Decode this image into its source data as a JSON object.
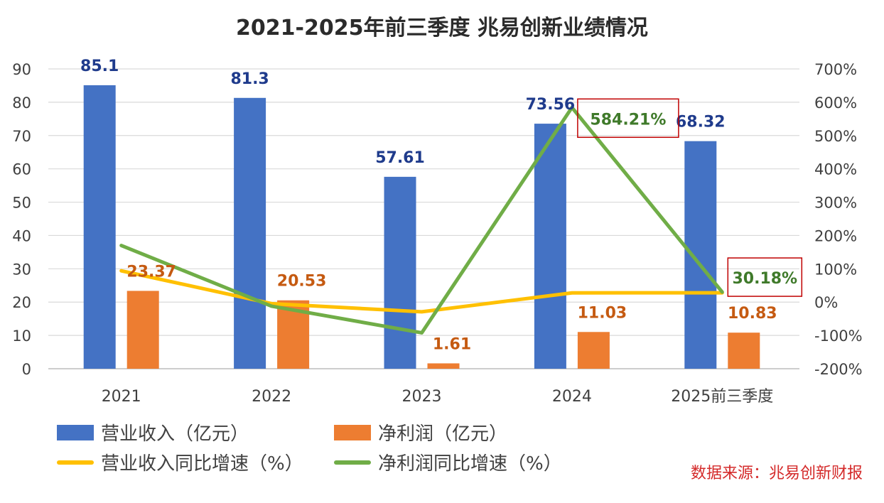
{
  "title": "2021-2025年前三季度 兆易创新业绩情况",
  "source": "数据来源：兆易创新财报",
  "colors": {
    "revenue": "#4472c4",
    "net_profit": "#ed7d31",
    "revenue_yoy": "#ffc000",
    "net_profit_yoy": "#70ad47",
    "revenue_label": "#1f3b8c",
    "profit_label": "#c55a11",
    "highlight_box": "#c00000",
    "highlight_text": "#3f7a2a",
    "grid": "#d9d9d9",
    "axis_text": "#404040"
  },
  "chart_data": {
    "type": "bar",
    "title": "2021-2025年前三季度 兆易创新业绩情况",
    "categories": [
      "2021",
      "2022",
      "2023",
      "2024",
      "2025前三季度"
    ],
    "series": [
      {
        "name": "营业收入（亿元）",
        "kind": "bar",
        "axis": "left",
        "values": [
          85.1,
          81.3,
          57.61,
          73.56,
          68.32
        ],
        "labels": [
          "85.1",
          "81.3",
          "57.61",
          "73.56",
          "68.32"
        ]
      },
      {
        "name": "净利润（亿元）",
        "kind": "bar",
        "axis": "left",
        "values": [
          23.37,
          20.53,
          1.61,
          11.03,
          10.83
        ],
        "labels": [
          "23.37",
          "20.53",
          "1.61",
          "11.03",
          "10.83"
        ]
      },
      {
        "name": "营业收入同比增速（%）",
        "kind": "line",
        "axis": "right",
        "values": [
          94,
          -4.5,
          -29.1,
          27.7,
          28
        ]
      },
      {
        "name": "净利润同比增速（%）",
        "kind": "line",
        "axis": "right",
        "values": [
          170,
          -12.2,
          -92.2,
          584.21,
          30.18
        ]
      }
    ],
    "annotations": [
      {
        "series": "净利润同比增速（%）",
        "category": "2024",
        "text": "584.21%"
      },
      {
        "series": "净利润同比增速（%）",
        "category": "2025前三季度",
        "text": "30.18%"
      }
    ],
    "left_axis": {
      "ylim": [
        0,
        90
      ],
      "ticks": [
        "0",
        "10",
        "20",
        "30",
        "40",
        "50",
        "60",
        "70",
        "80",
        "90"
      ]
    },
    "right_axis": {
      "ylim": [
        -200,
        700
      ],
      "ticks": [
        "-200%",
        "-100%",
        "0%",
        "100%",
        "200%",
        "300%",
        "400%",
        "500%",
        "600%",
        "700%"
      ]
    },
    "grid": true,
    "legend_position": "bottom-left"
  },
  "legend": [
    {
      "label": "营业收入（亿元）",
      "type": "bar",
      "color_key": "revenue"
    },
    {
      "label": "净利润（亿元）",
      "type": "bar",
      "color_key": "net_profit"
    },
    {
      "label": "营业收入同比增速（%）",
      "type": "line",
      "color_key": "revenue_yoy"
    },
    {
      "label": "净利润同比增速（%）",
      "type": "line",
      "color_key": "net_profit_yoy"
    }
  ]
}
